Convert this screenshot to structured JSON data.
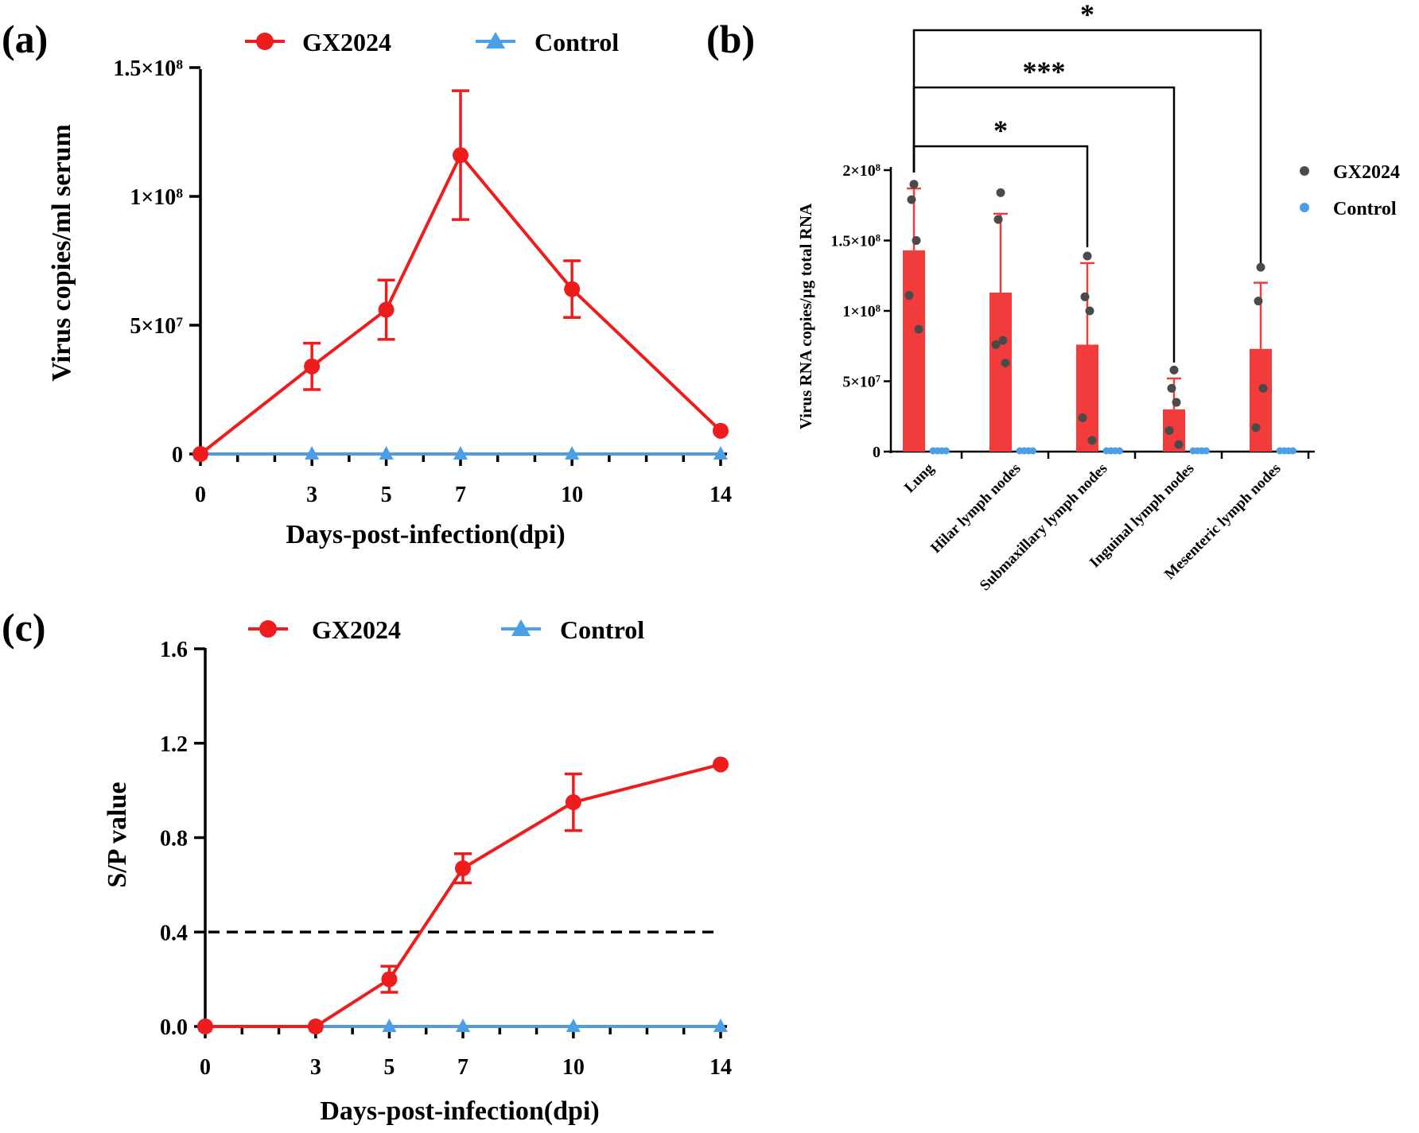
{
  "chart_data": [
    {
      "panel": "(a)",
      "type": "line",
      "xlabel": "Days-post-infection(dpi)",
      "ylabel": "Virus copies/ml serum",
      "x": [
        0,
        3,
        5,
        7,
        10,
        14
      ],
      "xlim": [
        0,
        14
      ],
      "ylim": [
        0,
        150000000
      ],
      "yticks": [
        {
          "v": 0,
          "b": "0",
          "e": ""
        },
        {
          "v": 50000000,
          "b": "5×10",
          "e": "7"
        },
        {
          "v": 100000000,
          "b": "1×10",
          "e": "8"
        },
        {
          "v": 150000000,
          "b": "1.5×10",
          "e": "8"
        }
      ],
      "series": [
        {
          "name": "GX2024",
          "color": "#ee1c1c",
          "marker": "circle",
          "values": [
            0,
            34000000,
            56000000,
            116000000,
            64000000,
            9000000
          ],
          "err": [
            0,
            9000000,
            11500000,
            25000000,
            11000000,
            0
          ]
        },
        {
          "name": "Control",
          "color": "#4a9fe8",
          "marker": "triangle",
          "values": [
            0,
            0,
            0,
            0,
            0,
            0
          ]
        }
      ]
    },
    {
      "panel": "(b)",
      "type": "bar",
      "ylabel": "Virus RNA copies/µg total RNA",
      "categories": [
        "Lung",
        "Hilar lymph nodes",
        "Submaxillary lymph nodes",
        "Inguinal lymph nodes",
        "Mesenteric lymph nodes"
      ],
      "ylim": [
        0,
        200000000
      ],
      "yticks": [
        {
          "v": 0,
          "b": "0",
          "e": ""
        },
        {
          "v": 50000000,
          "b": "5×10",
          "e": "7"
        },
        {
          "v": 100000000,
          "b": "1×10",
          "e": "8"
        },
        {
          "v": 150000000,
          "b": "1.5×10",
          "e": "8"
        },
        {
          "v": 200000000,
          "b": "2×10",
          "e": "8"
        }
      ],
      "series": [
        {
          "name": "GX2024",
          "color": "#f23c3c",
          "dot_color": "#4a4a4a",
          "values": [
            143000000,
            113000000,
            76000000,
            30000000,
            73000000
          ],
          "err": [
            44000000,
            56000000,
            58000000,
            22000000,
            47000000
          ],
          "points": [
            [
              190000000,
              179000000,
              150000000,
              111000000,
              87000000
            ],
            [
              184000000,
              165000000,
              79000000,
              76000000,
              63000000
            ],
            [
              139000000,
              110000000,
              100000000,
              24000000,
              8000000
            ],
            [
              58000000,
              45000000,
              35000000,
              15000000,
              5000000
            ],
            [
              131000000,
              107000000,
              45000000,
              17000000
            ]
          ]
        },
        {
          "name": "Control",
          "color": "#4a9fe8",
          "values": [
            0,
            0,
            0,
            0,
            0
          ]
        }
      ],
      "comparisons": [
        {
          "from": "Lung",
          "to": "Submaxillary lymph nodes",
          "label": "*"
        },
        {
          "from": "Lung",
          "to": "Inguinal lymph nodes",
          "label": "***"
        },
        {
          "from": "Lung",
          "to": "Mesenteric lymph nodes",
          "label": "*"
        }
      ]
    },
    {
      "panel": "(c)",
      "type": "line",
      "xlabel": "Days-post-infection(dpi)",
      "ylabel": "S/P value",
      "x": [
        0,
        3,
        5,
        7,
        10,
        14
      ],
      "xlim": [
        0,
        14
      ],
      "ylim": [
        0,
        1.6
      ],
      "yticks": [
        {
          "v": 0,
          "b": "0.0",
          "e": ""
        },
        {
          "v": 0.4,
          "b": "0.4",
          "e": ""
        },
        {
          "v": 0.8,
          "b": "0.8",
          "e": ""
        },
        {
          "v": 1.2,
          "b": "1.2",
          "e": ""
        },
        {
          "v": 1.6,
          "b": "1.6",
          "e": ""
        }
      ],
      "threshold": 0.4,
      "series": [
        {
          "name": "GX2024",
          "color": "#ee1c1c",
          "marker": "circle",
          "values": [
            0,
            0,
            0.2,
            0.67,
            0.95,
            1.11
          ],
          "err": [
            0,
            0,
            0.055,
            0.062,
            0.12,
            0
          ]
        },
        {
          "name": "Control",
          "color": "#4a9fe8",
          "marker": "triangle",
          "values": [
            0,
            0,
            0,
            0,
            0,
            0
          ]
        }
      ]
    }
  ]
}
